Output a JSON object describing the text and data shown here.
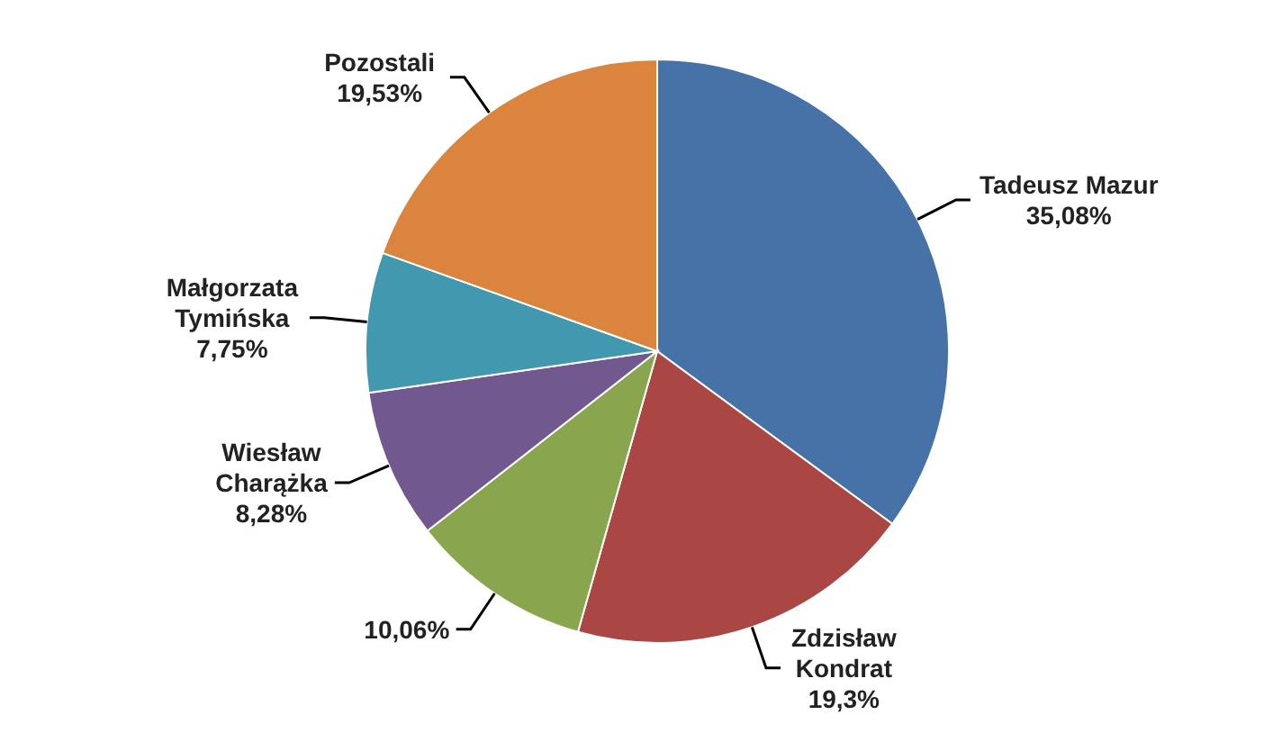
{
  "chart_data": {
    "type": "pie",
    "categories": [
      "Tadeusz Mazur",
      "Zdzisław Kondrat",
      null,
      "Wiesław Charążka",
      "Małgorzata Tymińska",
      "Pozostali"
    ],
    "values": [
      35.08,
      19.3,
      10.06,
      8.28,
      7.75,
      19.53
    ],
    "value_labels": [
      "35,08%",
      "19,3%",
      "10,06%",
      "8,28%",
      "7,75%",
      "19,53%"
    ],
    "colors": [
      "#4672a8",
      "#aa4643",
      "#89a54e",
      "#71588f",
      "#4198af",
      "#db843d"
    ]
  }
}
